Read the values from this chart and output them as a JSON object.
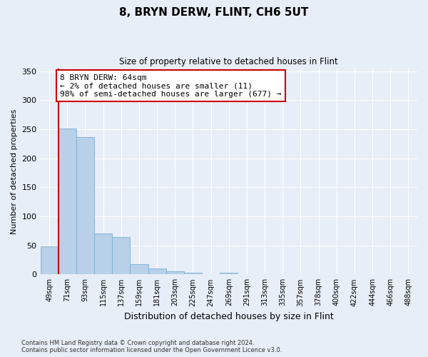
{
  "title": "8, BRYN DERW, FLINT, CH6 5UT",
  "subtitle": "Size of property relative to detached houses in Flint",
  "xlabel": "Distribution of detached houses by size in Flint",
  "ylabel": "Number of detached properties",
  "bar_labels": [
    "49sqm",
    "71sqm",
    "93sqm",
    "115sqm",
    "137sqm",
    "159sqm",
    "181sqm",
    "203sqm",
    "225sqm",
    "247sqm",
    "269sqm",
    "291sqm",
    "313sqm",
    "335sqm",
    "357sqm",
    "378sqm",
    "400sqm",
    "422sqm",
    "444sqm",
    "466sqm",
    "488sqm"
  ],
  "bar_values": [
    48,
    251,
    236,
    70,
    64,
    17,
    10,
    5,
    3,
    0,
    3,
    0,
    0,
    0,
    0,
    0,
    0,
    0,
    0,
    0,
    0
  ],
  "bar_color": "#b8d0e8",
  "bar_edge_color": "#7aafd4",
  "highlight_line_color": "#cc0000",
  "annotation_text": "8 BRYN DERW: 64sqm\n← 2% of detached houses are smaller (11)\n98% of semi-detached houses are larger (677) →",
  "annotation_box_color": "#ffffff",
  "annotation_box_edge_color": "#cc0000",
  "ylim": [
    0,
    355
  ],
  "yticks": [
    0,
    50,
    100,
    150,
    200,
    250,
    300,
    350
  ],
  "background_color": "#e8eef7",
  "grid_color": "#ffffff",
  "footer_line1": "Contains HM Land Registry data © Crown copyright and database right 2024.",
  "footer_line2": "Contains public sector information licensed under the Open Government Licence v3.0."
}
